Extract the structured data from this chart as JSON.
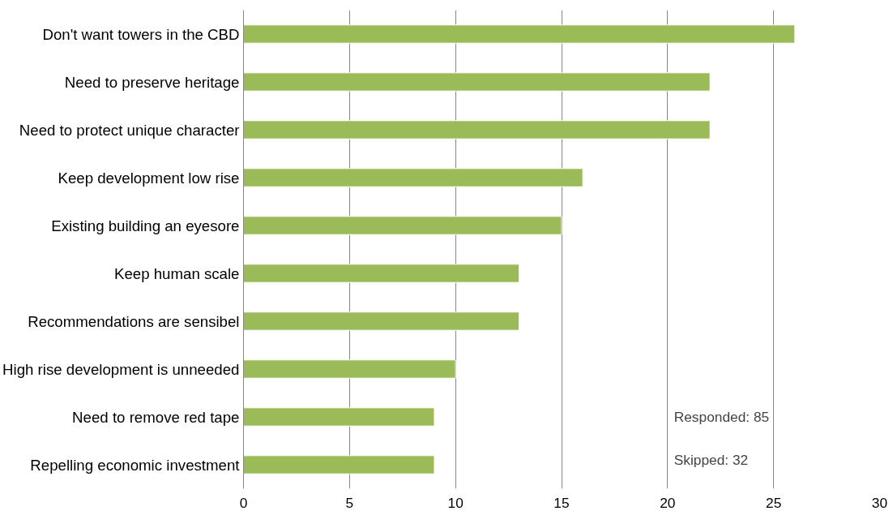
{
  "chart_data": {
    "type": "bar",
    "orientation": "horizontal",
    "categories": [
      "Don't want towers in the CBD",
      "Need to preserve heritage",
      "Need to protect unique character",
      "Keep development low rise",
      "Existing building an eyesore",
      "Keep human scale",
      "Recommendations are sensibel",
      "High rise development is unneeded",
      "Need to remove red tape",
      "Repelling economic investment"
    ],
    "values": [
      26,
      22,
      22,
      16,
      15,
      13,
      13,
      10,
      9,
      9
    ],
    "color": "#9bbb59",
    "xlim": [
      0,
      30
    ],
    "xticks": [
      0,
      5,
      10,
      15,
      20,
      25,
      30
    ],
    "grid": "x",
    "annotations": [
      "Responded: 85",
      "Skipped: 32"
    ]
  }
}
